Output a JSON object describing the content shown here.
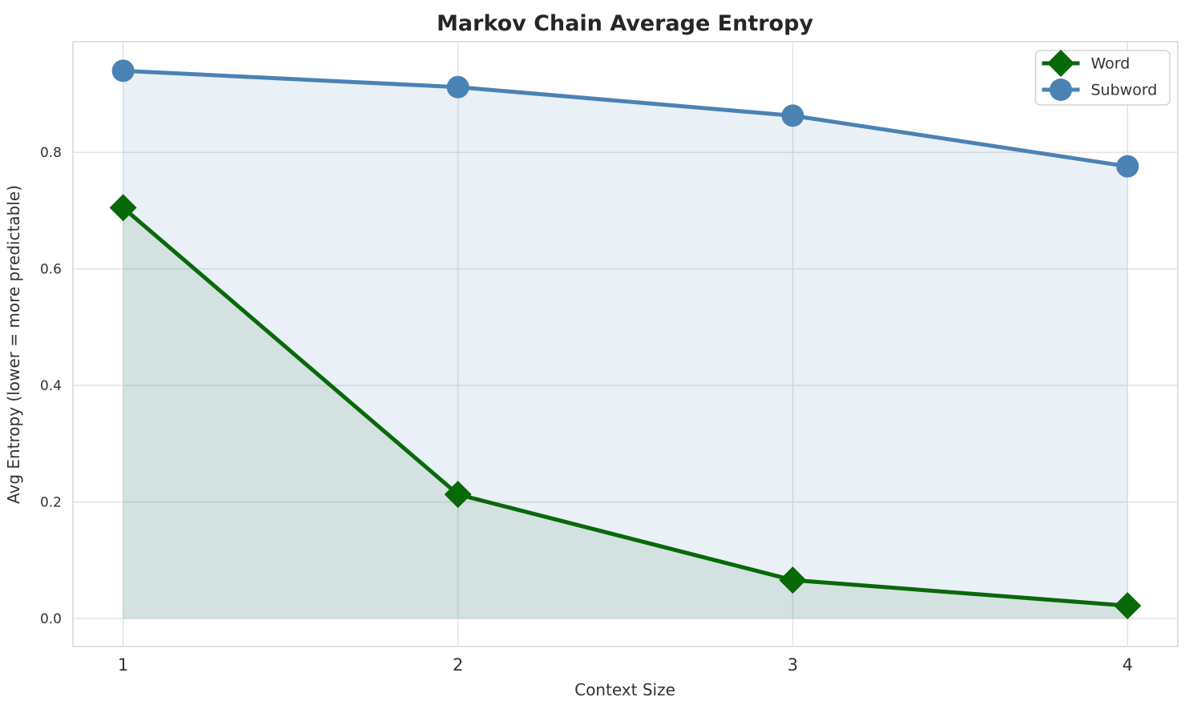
{
  "chart_data": {
    "type": "line",
    "title": "Markov Chain Average Entropy",
    "xlabel": "Context Size",
    "ylabel": "Avg Entropy (lower = more predictable)",
    "x": [
      1,
      2,
      3,
      4
    ],
    "xtick_labels": [
      "1",
      "2",
      "3",
      "4"
    ],
    "ytick_labels": [
      "0.0",
      "0.2",
      "0.4",
      "0.6",
      "0.8"
    ],
    "xticks": [
      1,
      2,
      3,
      4
    ],
    "yticks": [
      0.0,
      0.2,
      0.4,
      0.6,
      0.8
    ],
    "xlim": [
      0.85,
      4.15
    ],
    "ylim": [
      -0.048,
      0.99
    ],
    "grid": true,
    "legend_position": "upper right",
    "fill_to": 0,
    "series": [
      {
        "name": "Word",
        "values": [
          0.705,
          0.213,
          0.066,
          0.022
        ],
        "color": "#076907",
        "marker": "diamond",
        "fill_alpha": 0.1
      },
      {
        "name": "Subword",
        "values": [
          0.94,
          0.912,
          0.863,
          0.776
        ],
        "color": "#4a82b4",
        "marker": "circle",
        "fill_alpha": 0.12
      }
    ],
    "styles": {
      "grid_color": "#e3e3e3",
      "frame_color": "#d6d6d6",
      "tick_color": "#333333",
      "title_color": "#262626",
      "legend_border": "#cccccc",
      "legend_bg": "#ffffff",
      "line_width": 5
    }
  }
}
